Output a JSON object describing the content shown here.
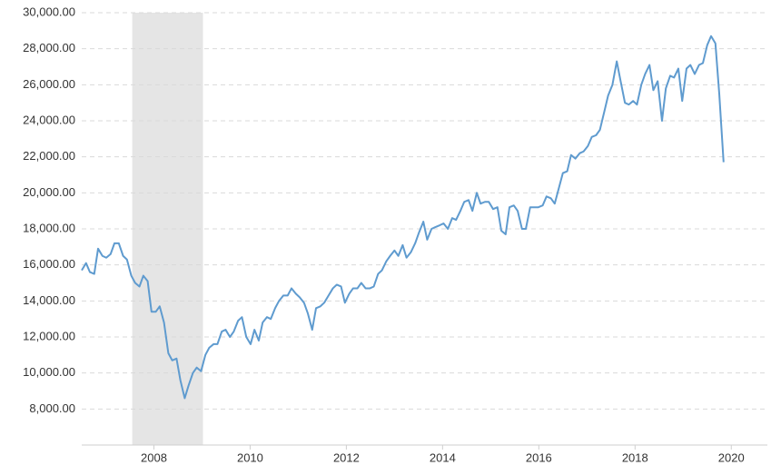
{
  "chart_data": {
    "type": "line",
    "x": [
      2006.5,
      2006.59,
      2006.67,
      2006.76,
      2006.84,
      2006.93,
      2007.01,
      2007.1,
      2007.18,
      2007.27,
      2007.36,
      2007.44,
      2007.53,
      2007.61,
      2007.7,
      2007.78,
      2007.87,
      2007.95,
      2008.04,
      2008.12,
      2008.21,
      2008.3,
      2008.38,
      2008.47,
      2008.55,
      2008.64,
      2008.72,
      2008.81,
      2008.89,
      2008.98,
      2009.07,
      2009.15,
      2009.24,
      2009.32,
      2009.41,
      2009.49,
      2009.58,
      2009.66,
      2009.75,
      2009.83,
      2009.92,
      2010.01,
      2010.09,
      2010.18,
      2010.26,
      2010.35,
      2010.43,
      2010.52,
      2010.6,
      2010.69,
      2010.78,
      2010.86,
      2010.95,
      2011.03,
      2011.12,
      2011.2,
      2011.29,
      2011.37,
      2011.46,
      2011.54,
      2011.63,
      2011.72,
      2011.8,
      2011.89,
      2011.97,
      2012.06,
      2012.14,
      2012.23,
      2012.31,
      2012.4,
      2012.49,
      2012.57,
      2012.66,
      2012.74,
      2012.83,
      2012.91,
      2013.0,
      2013.08,
      2013.17,
      2013.25,
      2013.34,
      2013.43,
      2013.51,
      2013.6,
      2013.68,
      2013.77,
      2013.85,
      2013.94,
      2014.02,
      2014.11,
      2014.2,
      2014.28,
      2014.37,
      2014.45,
      2014.54,
      2014.62,
      2014.71,
      2014.79,
      2014.88,
      2014.96,
      2015.05,
      2015.14,
      2015.22,
      2015.31,
      2015.39,
      2015.48,
      2015.56,
      2015.65,
      2015.73,
      2015.82,
      2015.91,
      2015.99,
      2016.08,
      2016.16,
      2016.25,
      2016.33,
      2016.42,
      2016.5,
      2016.59,
      2016.67,
      2016.76,
      2016.85,
      2016.93,
      2017.02,
      2017.1,
      2017.19,
      2017.27,
      2017.36,
      2017.44,
      2017.53,
      2017.62,
      2017.7,
      2017.79,
      2017.87,
      2017.96,
      2018.04,
      2018.13,
      2018.21,
      2018.3,
      2018.38,
      2018.47,
      2018.56,
      2018.64,
      2018.73,
      2018.81,
      2018.9,
      2018.98,
      2019.07,
      2019.15,
      2019.24,
      2019.33,
      2019.41,
      2019.5,
      2019.58,
      2019.67,
      2019.75,
      2019.84
    ],
    "series": [
      {
        "color": "#5f9bcf",
        "values": [
          15700,
          16100,
          15600,
          15500,
          16900,
          16500,
          16400,
          16600,
          17200,
          17200,
          16500,
          16300,
          15400,
          15000,
          14800,
          15400,
          15100,
          13400,
          13400,
          13700,
          12800,
          11100,
          10700,
          10800,
          9600,
          8600,
          9300,
          10000,
          10300,
          10100,
          11000,
          11400,
          11600,
          11600,
          12300,
          12400,
          12000,
          12300,
          12900,
          13100,
          12000,
          11600,
          12400,
          11800,
          12800,
          13100,
          13000,
          13600,
          14000,
          14300,
          14300,
          14700,
          14400,
          14200,
          13900,
          13300,
          12400,
          13600,
          13700,
          13900,
          14300,
          14700,
          14900,
          14800,
          13900,
          14400,
          14700,
          14700,
          15000,
          14700,
          14700,
          14800,
          15500,
          15700,
          16200,
          16500,
          16800,
          16500,
          17100,
          16400,
          16700,
          17200,
          17800,
          18400,
          17400,
          18000,
          18100,
          18200,
          18300,
          18000,
          18600,
          18500,
          19000,
          19500,
          19600,
          19000,
          20000,
          19400,
          19500,
          19500,
          19100,
          19200,
          17900,
          17700,
          19200,
          19300,
          19000,
          18000,
          18000,
          19200,
          19200,
          19200,
          19300,
          19800,
          19700,
          19400,
          20300,
          21100,
          21200,
          22100,
          21900,
          22200,
          22300,
          22600,
          23100,
          23200,
          23500,
          24500,
          25400,
          26000,
          27300,
          26200,
          25000,
          24900,
          25100,
          24900,
          26000,
          26600,
          27100,
          25700,
          26200,
          24000,
          25800,
          26500,
          26400,
          26900,
          25100,
          26900,
          27100,
          26600,
          27100,
          27200,
          28200,
          28700,
          28300,
          25500,
          21700
        ]
      }
    ],
    "xlim": [
      2006.5,
      2020.75
    ],
    "xticks": [
      2008,
      2010,
      2012,
      2014,
      2016,
      2018,
      2020
    ],
    "ylim": [
      6000,
      30000
    ],
    "yticks": [
      {
        "value": 8000,
        "label": "8,000.00"
      },
      {
        "value": 10000,
        "label": "10,000.00"
      },
      {
        "value": 12000,
        "label": "12,000.00"
      },
      {
        "value": 14000,
        "label": "14,000.00"
      },
      {
        "value": 16000,
        "label": "16,000.00"
      },
      {
        "value": 18000,
        "label": "18,000.00"
      },
      {
        "value": 20000,
        "label": "20,000.00"
      },
      {
        "value": 22000,
        "label": "22,000.00"
      },
      {
        "value": 24000,
        "label": "24,000.00"
      },
      {
        "value": 26000,
        "label": "26,000.00"
      },
      {
        "value": 28000,
        "label": "28,000.00"
      },
      {
        "value": 30000,
        "label": "30,000.00"
      }
    ],
    "shaded_range": [
      2007.55,
      2009.02
    ],
    "shade_color": "#e5e5e5",
    "grid": true
  }
}
